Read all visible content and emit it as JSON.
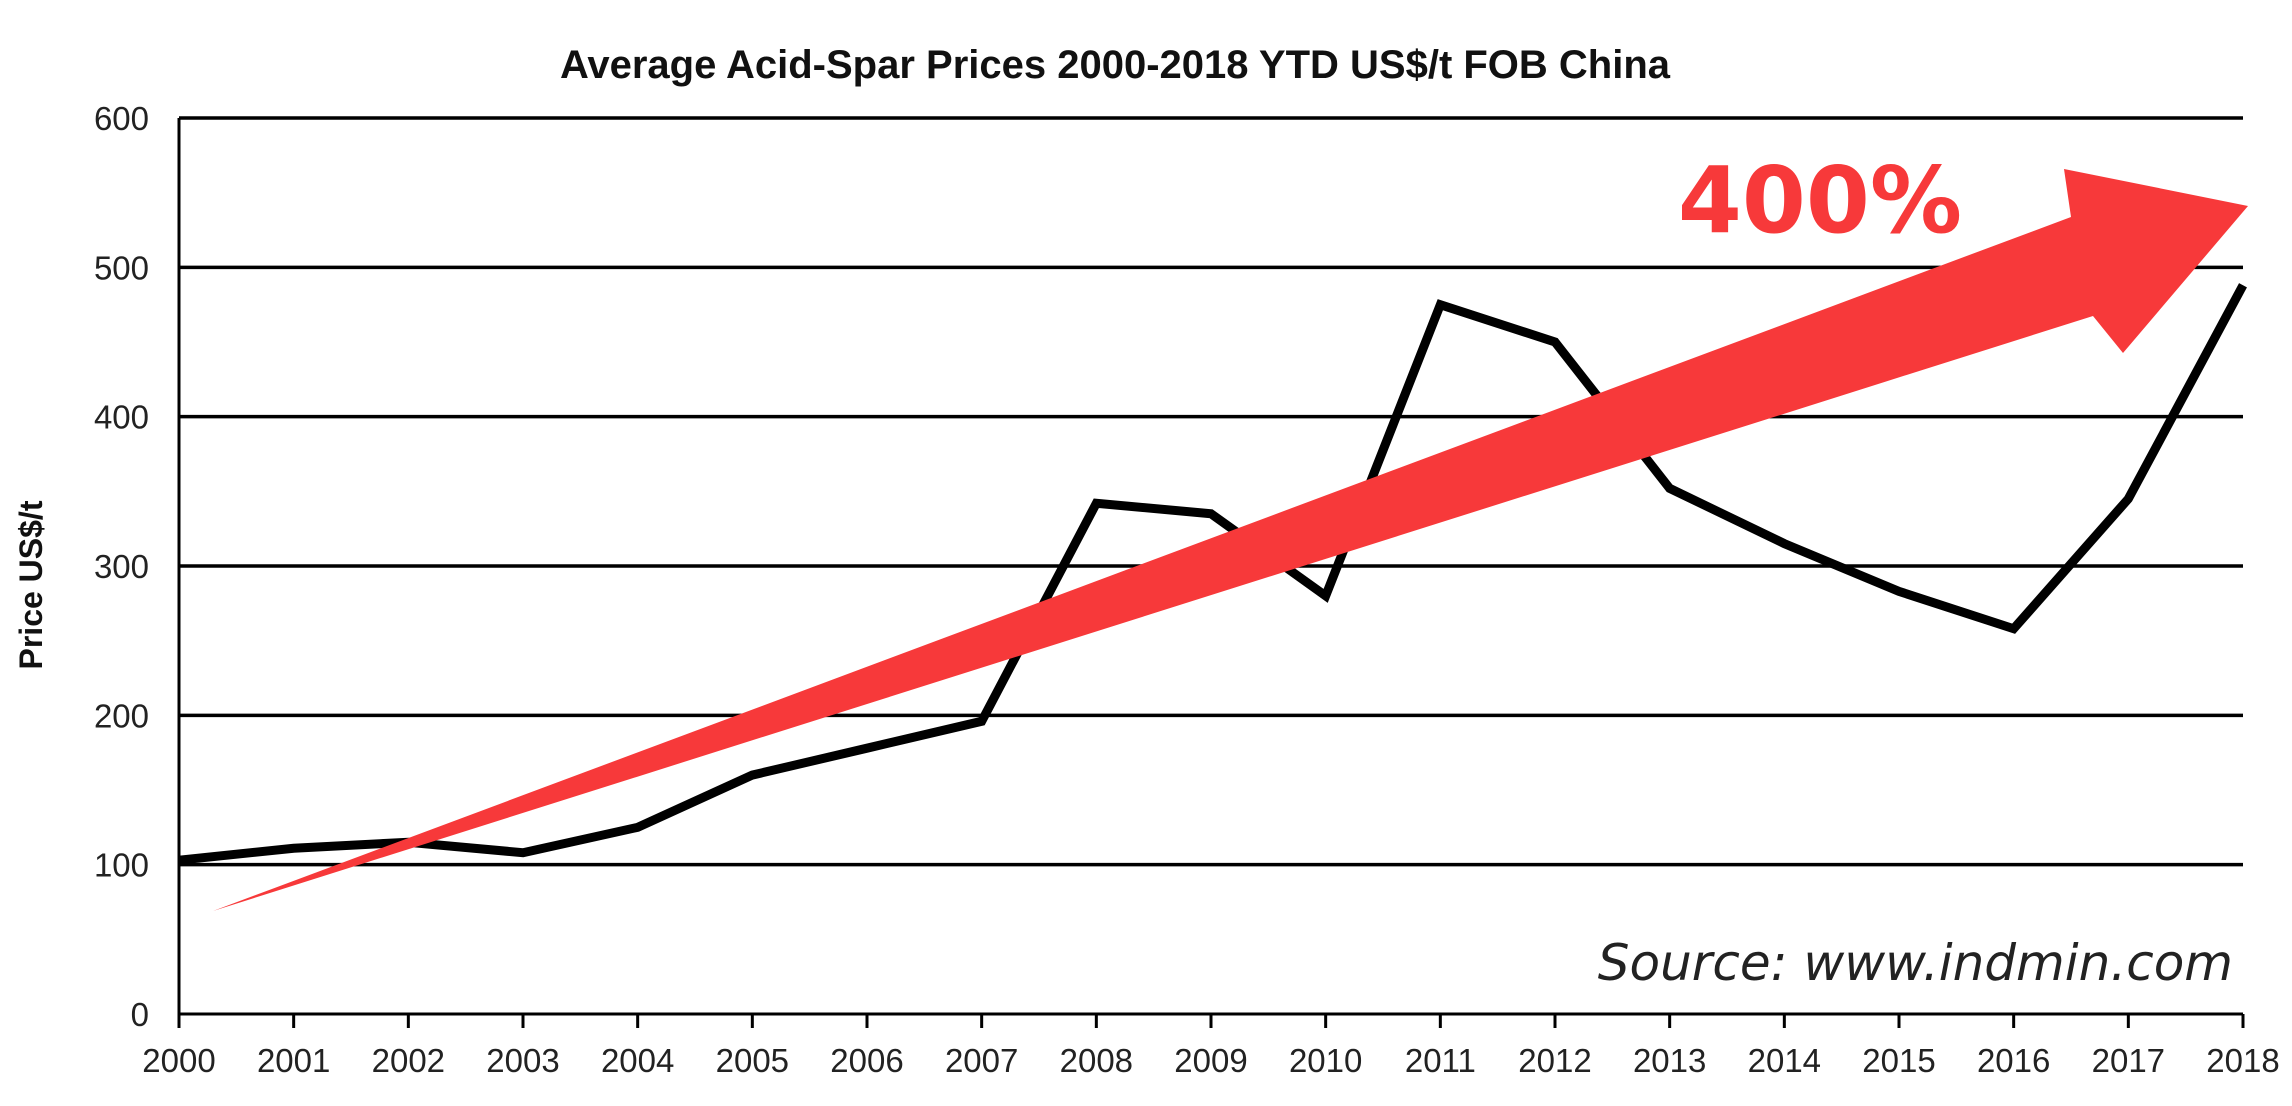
{
  "chart_data": {
    "type": "line",
    "title": "Average Acid-Spar Prices 2000-2018 YTD US$/t FOB China",
    "xlabel": "",
    "ylabel": "Price US$/t",
    "categories": [
      "2000",
      "2001",
      "2002",
      "2003",
      "2004",
      "2005",
      "2006",
      "2007",
      "2008",
      "2009",
      "2010",
      "2011",
      "2012",
      "2013",
      "2014",
      "2015",
      "2016",
      "2017",
      "2018"
    ],
    "values": [
      103,
      111,
      115,
      108,
      125,
      160,
      178,
      196,
      342,
      335,
      280,
      475,
      450,
      352,
      315,
      283,
      258,
      345,
      488
    ],
    "ylim": [
      0,
      600
    ],
    "yticks": [
      0,
      100,
      200,
      300,
      400,
      500,
      600
    ],
    "grid": "horizontal",
    "line_color": "#000000",
    "annotations": {
      "arrow_label": "400%",
      "arrow_color": "#f7393a",
      "source": "Source: www.indmin.com"
    }
  }
}
